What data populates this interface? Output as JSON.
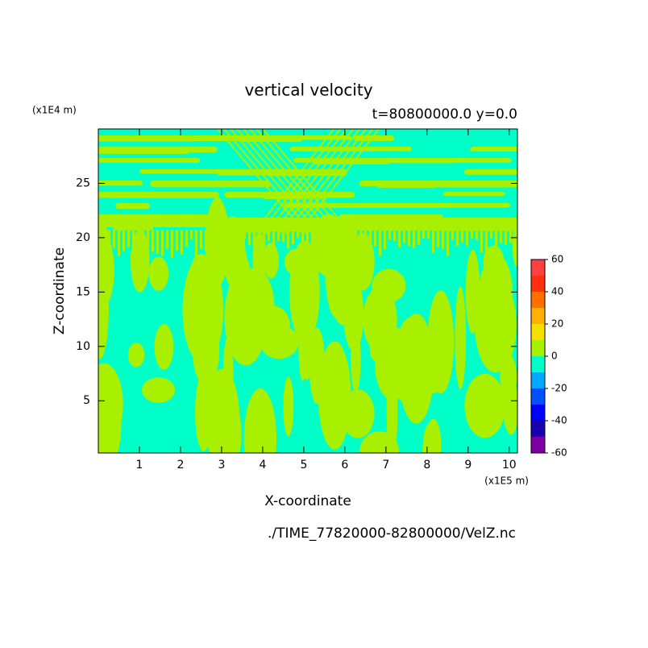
{
  "chart_data": {
    "type": "contour",
    "title": "vertical velocity",
    "subtitle": "t=80800000.0 y=0.0",
    "x_label": "X-coordinate",
    "y_label": "Z-coordinate",
    "x_unit": "(x1E5 m)",
    "y_unit": "(x1E4 m)",
    "footer": "./TIME_77820000-82800000/VelZ.nc",
    "xlim": [
      0,
      10.2
    ],
    "xticks": [
      1,
      2,
      3,
      4,
      5,
      6,
      7,
      8,
      9,
      10
    ],
    "ylim": [
      0.2,
      30
    ],
    "yticks": [
      5,
      10,
      15,
      20,
      25
    ],
    "levels": [
      -60,
      -50,
      -40,
      -30,
      -20,
      -10,
      0,
      10,
      20,
      30,
      40,
      50,
      60
    ],
    "level_colors": [
      "#7f00a0",
      "#1a00b0",
      "#0000ff",
      "#0050ff",
      "#00a8ff",
      "#00ffc8",
      "#a8f000",
      "#f5e000",
      "#ffb000",
      "#ff7000",
      "#ff3010",
      "#ff4040",
      "#ffa8a8"
    ],
    "colorbar_ticks": [
      -60,
      -40,
      -20,
      0,
      20,
      40,
      60
    ]
  }
}
